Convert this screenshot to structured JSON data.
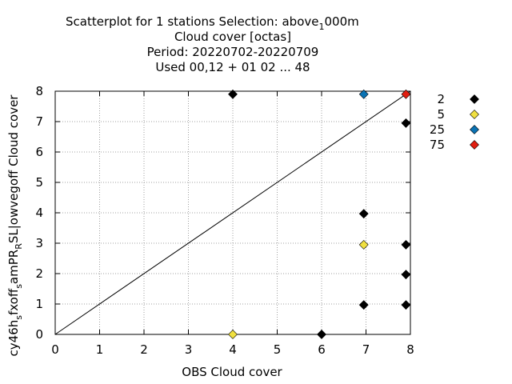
{
  "chart_data": {
    "type": "scatter",
    "title_lines": [
      "Scatterplot for    1 stations Selection: above",
      "Cloud cover [octas]",
      "Period: 20220702-20220709",
      "Used  00,12  + 01 02 ... 48"
    ],
    "title_sub": "1",
    "title_tail": "000m",
    "xlabel": "OBS Cloud cover",
    "ylabel_parts": [
      "cy46h",
      "s",
      "fxoff",
      "s",
      "amPR",
      "R",
      "SL|owvegoff Cloud cover"
    ],
    "xlim": [
      0,
      8
    ],
    "ylim": [
      0,
      8
    ],
    "xticks": [
      "0",
      "1",
      "2",
      "3",
      "4",
      "5",
      "6",
      "7",
      "8"
    ],
    "yticks": [
      "0",
      "1",
      "2",
      "3",
      "4",
      "5",
      "6",
      "7",
      "8"
    ],
    "grid": true,
    "diagonal": true,
    "legend_position": "right",
    "series": [
      {
        "name": "2",
        "color": "#000000",
        "points": [
          [
            4,
            7.9
          ],
          [
            6,
            0
          ],
          [
            6.95,
            3.97
          ],
          [
            6.95,
            0.97
          ],
          [
            7.9,
            6.95
          ],
          [
            7.9,
            2.95
          ],
          [
            7.9,
            1.97
          ],
          [
            7.9,
            0.97
          ]
        ]
      },
      {
        "name": "5",
        "color": "#f0e040",
        "points": [
          [
            4,
            0
          ],
          [
            6.95,
            2.95
          ]
        ]
      },
      {
        "name": "25",
        "color": "#0a72b3",
        "points": [
          [
            6.95,
            7.9
          ]
        ]
      },
      {
        "name": "75",
        "color": "#e01e10",
        "points": [
          [
            7.9,
            7.9
          ]
        ]
      }
    ]
  }
}
